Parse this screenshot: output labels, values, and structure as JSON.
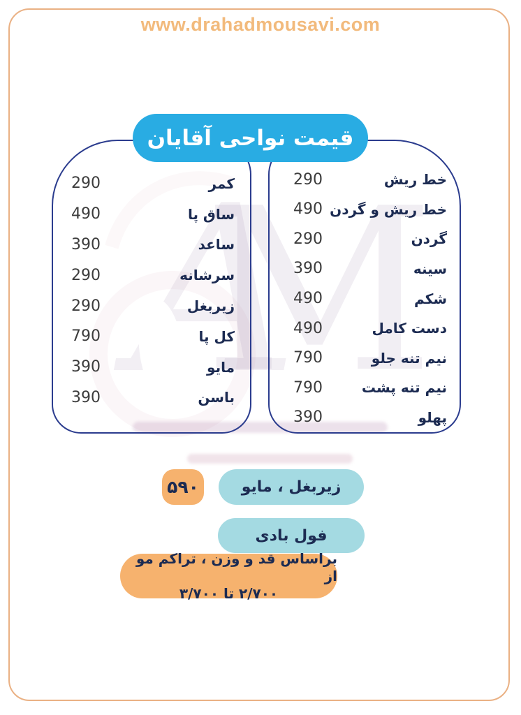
{
  "header": {
    "website": "www.drahadmousavi.com"
  },
  "title": "قیمت نواحی آقایان",
  "watermark": {
    "letter_a": "A",
    "letter_m": "M"
  },
  "boxes": {
    "right": {
      "items": [
        {
          "label": "خط ریش",
          "price": "290"
        },
        {
          "label": "خط ریش و گردن",
          "price": "490"
        },
        {
          "label": "گردن",
          "price": "290"
        },
        {
          "label": "سینه",
          "price": "390"
        },
        {
          "label": "شکم",
          "price": "490"
        },
        {
          "label": "دست کامل",
          "price": "490"
        },
        {
          "label": "نیم تنه جلو",
          "price": "790"
        },
        {
          "label": "نیم تنه پشت",
          "price": "790"
        },
        {
          "label": "پهلو",
          "price": "390"
        }
      ]
    },
    "left": {
      "items": [
        {
          "label": "کمر",
          "price": "290"
        },
        {
          "label": "ساق پا",
          "price": "490"
        },
        {
          "label": "ساعد",
          "price": "390"
        },
        {
          "label": "سرشانه",
          "price": "290"
        },
        {
          "label": "زیربغل",
          "price": "290"
        },
        {
          "label": "کل پا",
          "price": "790"
        },
        {
          "label": "مایو",
          "price": "390"
        },
        {
          "label": "باسن",
          "price": "390"
        }
      ]
    }
  },
  "offers": {
    "combo_price": "۵۹۰",
    "combo_label": "زیربغل ، مایو",
    "full_body_label": "فول بادی",
    "note_line1": "براساس قد و وزن ، تراکم مو از",
    "note_line2": "۲/۷۰۰ تا ۳/۷۰۰"
  },
  "colors": {
    "accent_blue": "#29ACE3",
    "box_border_navy": "#2B3C8E",
    "text_navy": "#1C2B52",
    "price_grey": "#3C3C3C",
    "orange": "#F6B26E",
    "teal": "#A4DAE2",
    "frame_orange": "#EAB184",
    "url_orange": "#F2BA7C"
  }
}
